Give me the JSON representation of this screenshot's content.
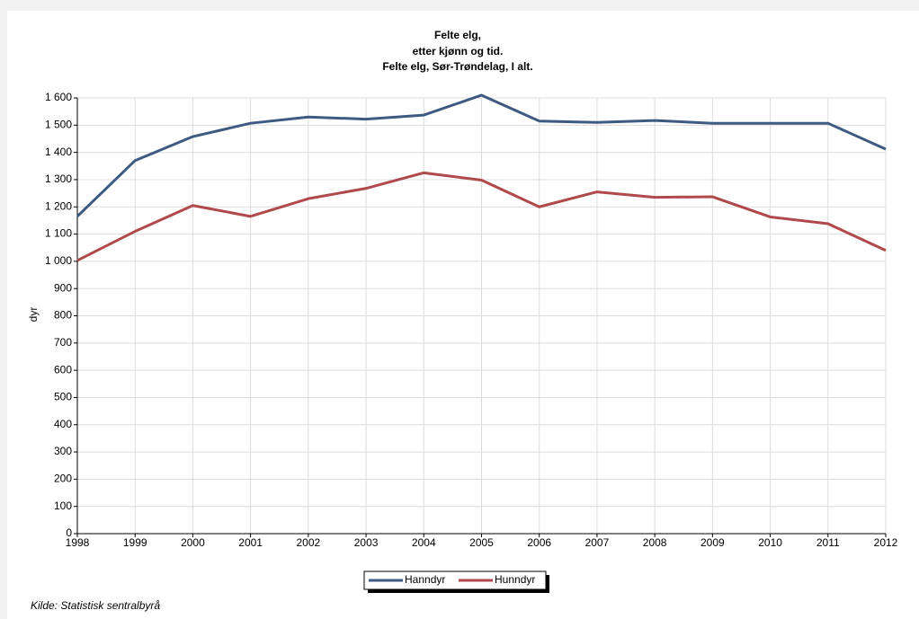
{
  "chart_data": {
    "type": "line",
    "title": [
      "Felte elg,",
      "etter kjønn og tid.",
      "Felte elg, Sør-Trøndelag, I alt."
    ],
    "y_label": "dyr",
    "source": "Kilde: Statistisk sentralbyrå",
    "x": [
      1998,
      1999,
      2000,
      2001,
      2002,
      2003,
      2004,
      2005,
      2006,
      2007,
      2008,
      2009,
      2010,
      2011,
      2012
    ],
    "xlim": [
      1998,
      2012
    ],
    "xticks": [
      1998,
      1999,
      2000,
      2001,
      2002,
      2003,
      2004,
      2005,
      2006,
      2007,
      2008,
      2009,
      2010,
      2011,
      2012
    ],
    "ylim": [
      0,
      1600
    ],
    "yticks": [
      0,
      100,
      200,
      300,
      400,
      500,
      600,
      700,
      800,
      900,
      {
        "value": 1000,
        "label": "1 000"
      },
      {
        "value": 1100,
        "label": "1 100"
      },
      {
        "value": 1200,
        "label": "1 200"
      },
      {
        "value": 1300,
        "label": "1 300"
      },
      {
        "value": 1400,
        "label": "1 400"
      },
      {
        "value": 1500,
        "label": "1 500"
      },
      {
        "value": 1600,
        "label": "1 600"
      }
    ],
    "grid": true,
    "legend": "bottom",
    "series": [
      {
        "name": "Hanndyr",
        "color": "#3f5a80",
        "values": [
          1165,
          1370,
          1458,
          1507,
          1530,
          1522,
          1537,
          1610,
          1515,
          1510,
          1517,
          1507,
          1507,
          1507,
          1412
        ]
      },
      {
        "name": "Hunndyr",
        "color": "#b0494b",
        "values": [
          1003,
          1110,
          1205,
          1165,
          1230,
          1268,
          1325,
          1298,
          1200,
          1255,
          1235,
          1237,
          1163,
          1138,
          1040
        ]
      }
    ]
  }
}
